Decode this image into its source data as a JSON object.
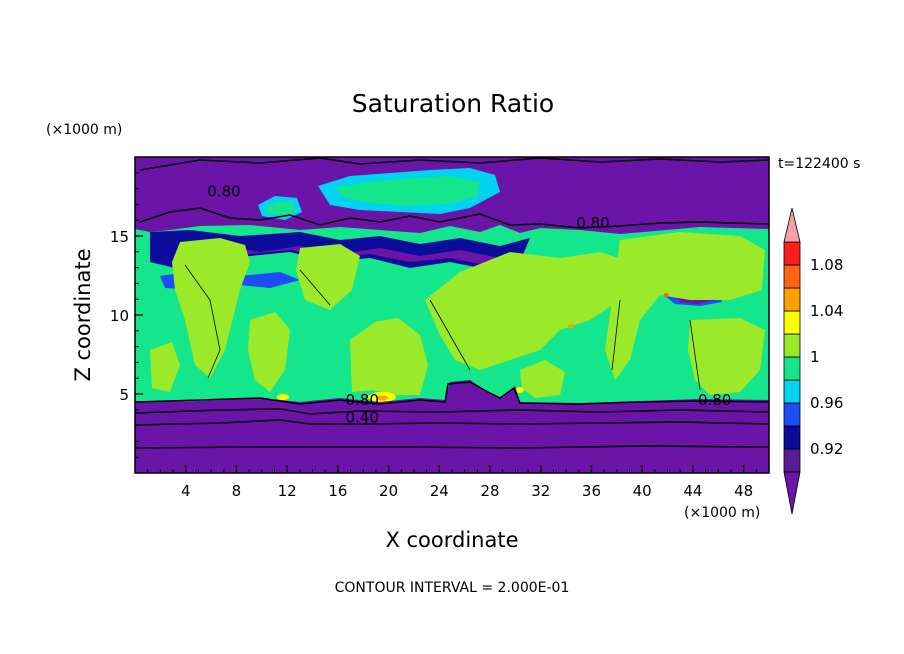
{
  "chart_data": {
    "type": "heatmap",
    "title": "Saturation Ratio",
    "xlabel": "X coordinate",
    "ylabel": "Z coordinate",
    "x_unit": "(×1000 m)",
    "y_unit": "(×1000 m)",
    "time_label": "t=122400 s",
    "footer": "CONTOUR INTERVAL = 2.000E-01",
    "xlim": [
      0,
      50
    ],
    "ylim": [
      0,
      20
    ],
    "x_ticks": [
      4,
      8,
      12,
      16,
      20,
      24,
      28,
      32,
      36,
      40,
      44,
      48
    ],
    "y_ticks": [
      5,
      10,
      15
    ],
    "colorbar": {
      "levels": [
        0.9,
        0.92,
        0.94,
        0.96,
        0.98,
        1.0,
        1.02,
        1.04,
        1.06,
        1.08,
        1.1
      ],
      "tick_labels": [
        "0.92",
        "0.96",
        "1",
        "1.04",
        "1.08"
      ],
      "tick_values": [
        0.92,
        0.96,
        1.0,
        1.04,
        1.08
      ],
      "colors": [
        "#5a1a96",
        "#0c0c9c",
        "#1e4cf5",
        "#00d2f0",
        "#14e68c",
        "#9bea2a",
        "#ffff00",
        "#ffa000",
        "#ff6414",
        "#ff1e1e"
      ],
      "under_color": "#6a14a8",
      "over_color": "#f4a0a8"
    },
    "contour_labels": [
      {
        "text": "0.80",
        "x": 5.7,
        "y": 17.5
      },
      {
        "text": "0.80",
        "x": 34.8,
        "y": 15.5
      },
      {
        "text": "0.80",
        "x": 16.6,
        "y": 4.3
      },
      {
        "text": "0.40",
        "x": 16.6,
        "y": 3.2
      },
      {
        "text": "0.80",
        "x": 44.4,
        "y": 4.3
      }
    ]
  }
}
